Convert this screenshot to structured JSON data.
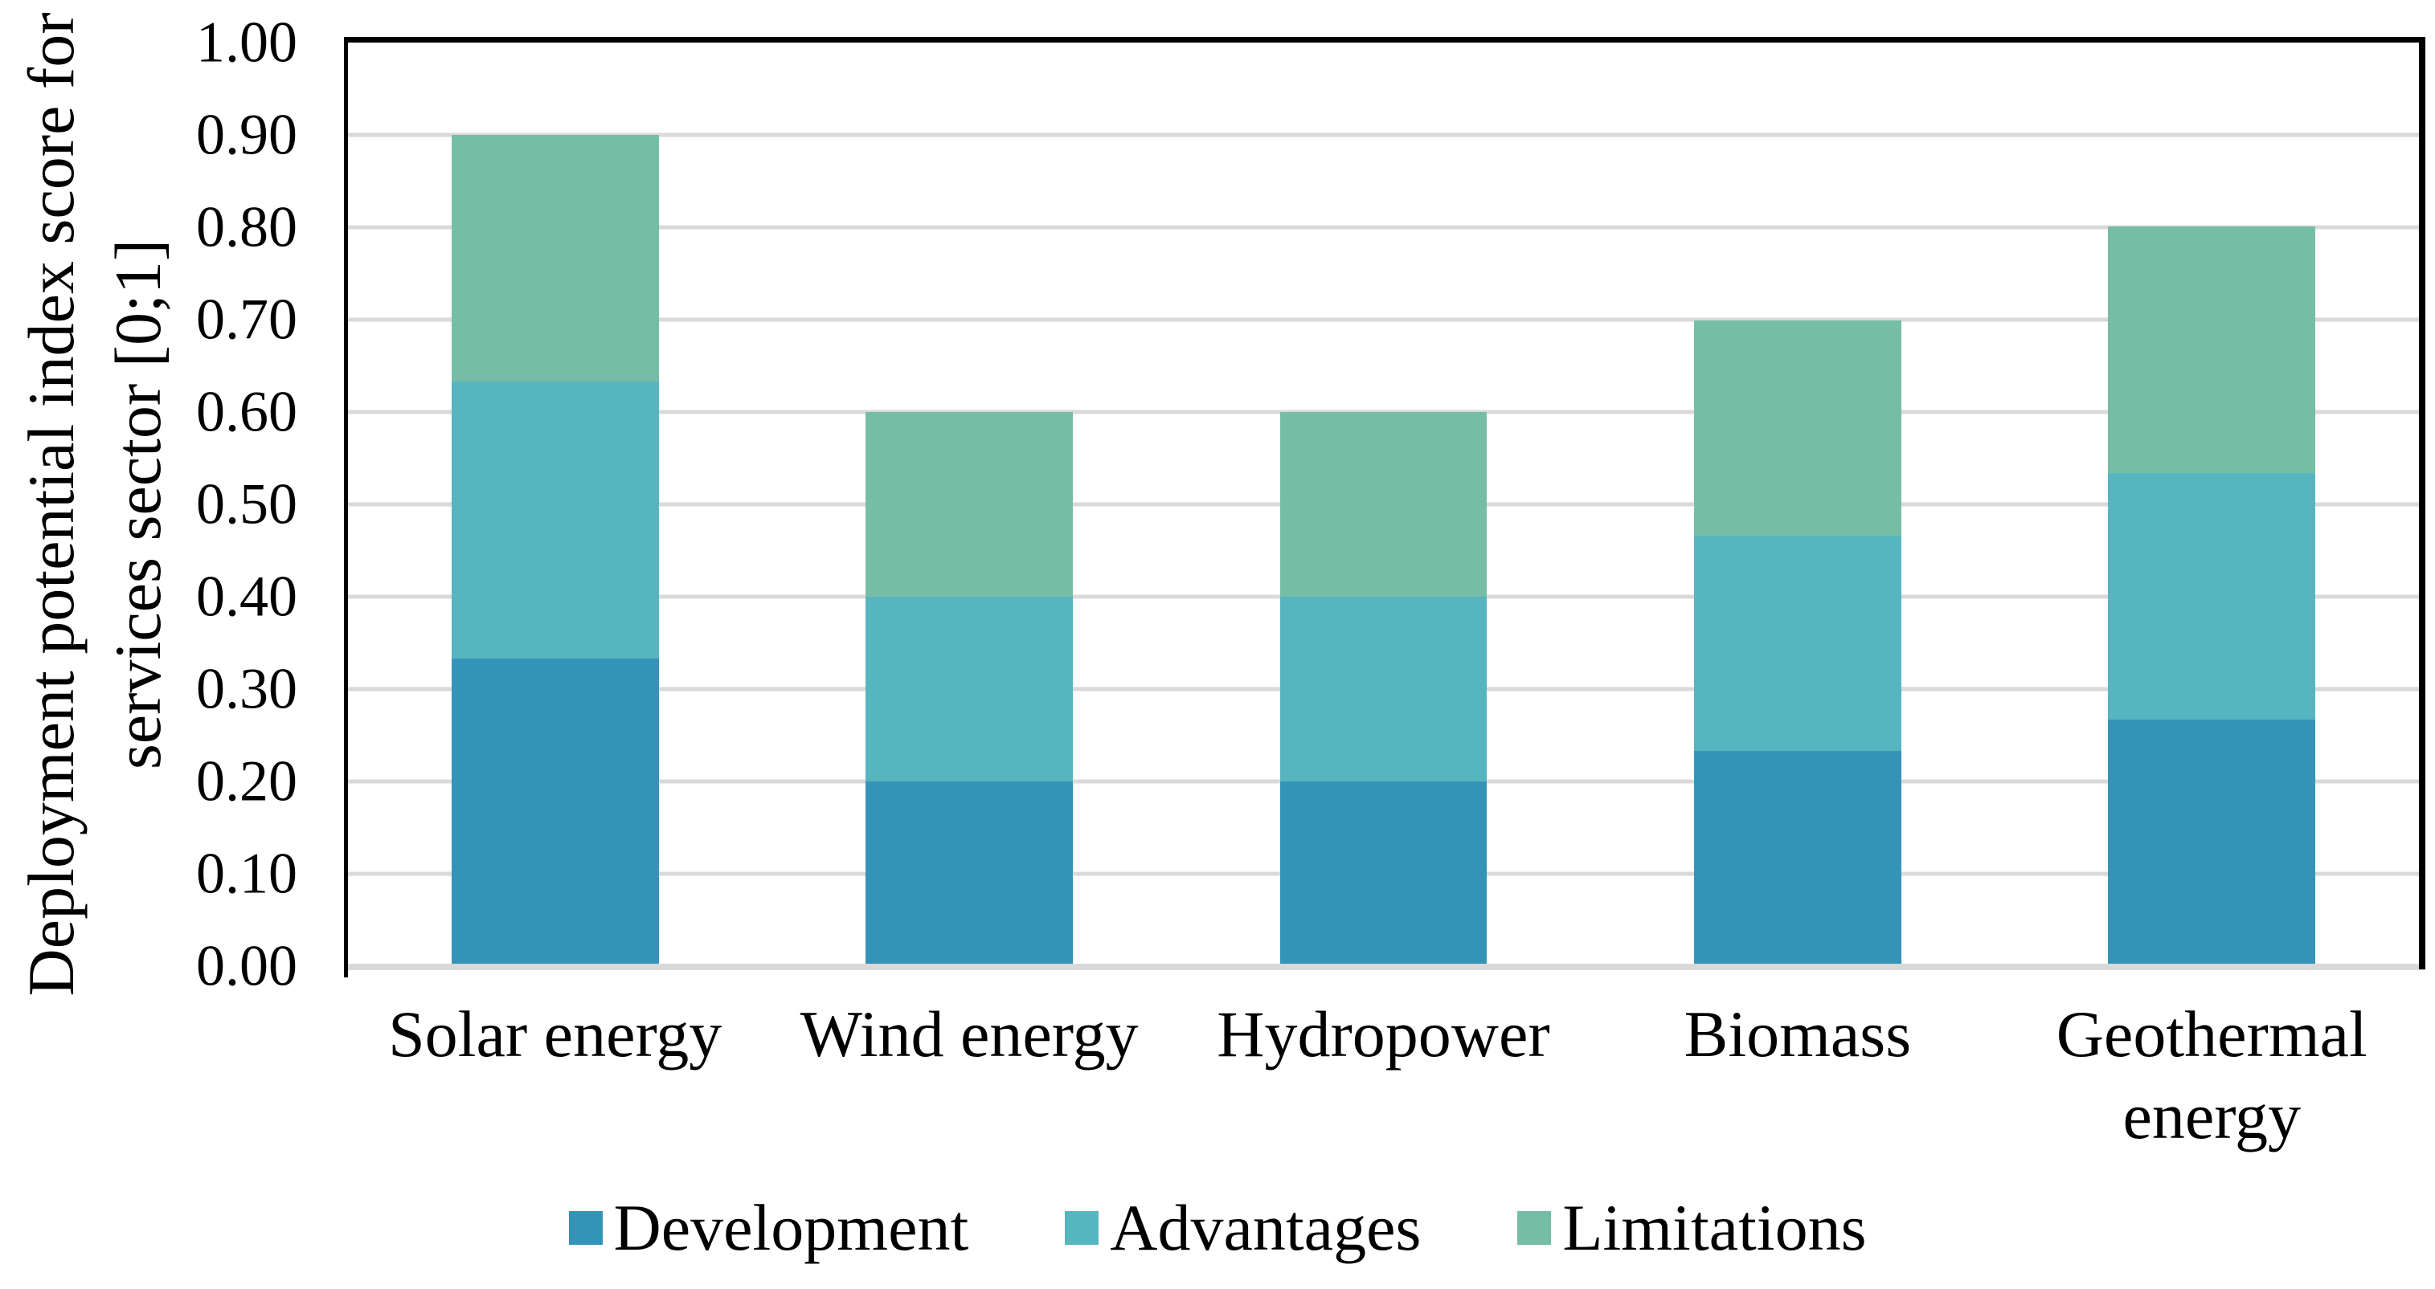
{
  "chart_data": {
    "type": "bar",
    "stacked": true,
    "title": "",
    "xlabel": "",
    "ylabel_line1": "Deployment potential  index score for",
    "ylabel_line2": "services sector [0;1]",
    "categories": [
      "Solar energy",
      "Wind energy",
      "Hydropower",
      "Biomass",
      "Geothermal energy"
    ],
    "series": [
      {
        "name": "Development",
        "color": "#3494b8",
        "values": [
          0.333,
          0.2,
          0.2,
          0.233,
          0.267
        ]
      },
      {
        "name": "Advantages",
        "color": "#57b5bf",
        "values": [
          0.3,
          0.2,
          0.2,
          0.233,
          0.267
        ]
      },
      {
        "name": "Limitations",
        "color": "#76bda6",
        "values": [
          0.267,
          0.2,
          0.2,
          0.233,
          0.267
        ]
      }
    ],
    "stack_totals": [
      0.9,
      0.6,
      0.6,
      0.7,
      0.8
    ],
    "yticks": [
      "1.00",
      "0.90",
      "0.80",
      "0.70",
      "0.60",
      "0.50",
      "0.40",
      "0.30",
      "0.20",
      "0.10",
      "0.00"
    ],
    "ylim": [
      0,
      1
    ],
    "grid": "horizontal",
    "legend_position": "bottom"
  },
  "colors": {
    "background": "#ffffff",
    "gridline": "#d9d9d9",
    "baseline": "#d9d9d9",
    "plot_border": "#000000",
    "text": "#000000"
  }
}
